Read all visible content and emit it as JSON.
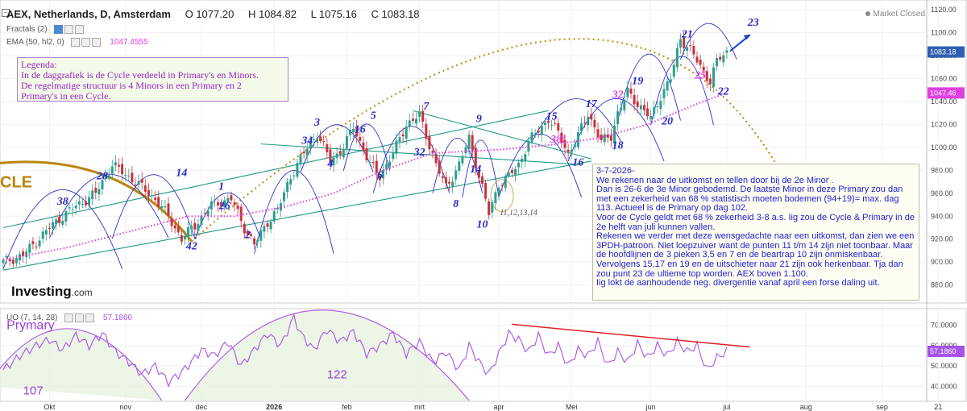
{
  "header": {
    "title": "AEX, Netherlands, D, Amsterdam",
    "open": "O 1077.20",
    "high": "H 1084.82",
    "low": "L 1075.16",
    "close": "C 1083.18",
    "market_status": "Market Closed"
  },
  "indicators": {
    "fractals": "Fractals (2)",
    "ema": "EMA (50, hl2, 0)",
    "ema_value": "1047.4555",
    "uo": "UO (7, 14, 28)",
    "uo_value": "57.1860"
  },
  "legend_note": {
    "lines": [
      "Legenda:",
      "In de daggrafiek is de Cycle verdeeld in Primary's en Minors.",
      "De regelmatige structuur is 4 Minors in een Primary en 2",
      "Primary's in een Cycle."
    ]
  },
  "analysis_note": "3-7-2026-\nWe rekenen naar de uitkomst en tellen door bij de 2e Minor .\nDan is 26-6 de 3e Minor gebodemd. De laatste Minor in deze Primary zou dan met een zekerheid van 68 %  statistisch moeten bodemen (94+19)= max. dag 113. Actueel is de Primary op dag 102.\nVoor de Cycle geldt met 68 % zekerheid  3-8 a.s. Iig zou de Cycle & Primary in de 2e helft van juli kunnen vallen.\nRekenen we verder met deze wensgedachte naar een uitkomst, dan zien we een 3PDH-patroon. Niet loepzuiver want de punten 11 t/m 14 zijn niet toonbaar. Maar de hoofdlijnen de 3 pieken 3,5 en 7 en de beartrap 10 zijn onmiskenbaar. Vervolgens 15,17 en 19 en de uitschieter naar 21 zijn ook herkenbaar.  Tja dan zou punt 23 de ultieme top worden. AEX boven 1.100.\nIig lokt de aanhoudende neg. divergentie vanaf april een forse daling uit.",
  "logo": {
    "brand": "Investing",
    "domain": ".com"
  },
  "cycle_text": "CLE",
  "colors": {
    "up": "#2d9e8e",
    "down": "#c8333b",
    "ema": "#e040e0",
    "channel": "#1e9a86",
    "minor_arc": "#2a2acc",
    "cycle_arc": "#b8860b",
    "dotted_arc": "#c7901a",
    "uo": "#a654e8",
    "divergence": "#e02020",
    "last_price_bg": "#2f5fb3"
  },
  "chart_data": {
    "type": "candlestick",
    "main": {
      "yaxis_ticks": [
        880,
        900,
        920,
        940,
        960,
        980,
        1000,
        1020,
        1040,
        1060,
        1080,
        1100,
        1120
      ],
      "ylim": [
        865,
        1125
      ],
      "last_price_label": "1083.18",
      "ema_label": "1047.46",
      "x_date_labels": [
        "Okt",
        "nov",
        "dec",
        "2026",
        "feb",
        "mrt",
        "apr",
        "Mei",
        "jun",
        "jul",
        "aug",
        "sep",
        "21"
      ],
      "x_date_index": [
        14,
        37,
        60,
        82,
        104,
        126,
        150,
        172,
        196,
        219,
        243,
        266,
        283
      ],
      "close_anchors": [
        [
          0,
          900
        ],
        [
          6,
          906
        ],
        [
          14,
          930
        ],
        [
          20,
          945
        ],
        [
          28,
          960
        ],
        [
          33,
          985
        ],
        [
          40,
          970
        ],
        [
          46,
          955
        ],
        [
          50,
          940
        ],
        [
          54,
          920
        ],
        [
          58,
          932
        ],
        [
          63,
          950
        ],
        [
          69,
          955
        ],
        [
          73,
          930
        ],
        [
          76,
          915
        ],
        [
          80,
          935
        ],
        [
          83,
          945
        ],
        [
          87,
          975
        ],
        [
          92,
          1000
        ],
        [
          95,
          1012
        ],
        [
          99,
          988
        ],
        [
          103,
          1000
        ],
        [
          106,
          1018
        ],
        [
          111,
          985
        ],
        [
          114,
          975
        ],
        [
          118,
          995
        ],
        [
          122,
          1020
        ],
        [
          126,
          1028
        ],
        [
          131,
          985
        ],
        [
          134,
          965
        ],
        [
          138,
          985
        ],
        [
          141,
          1008
        ],
        [
          145,
          965
        ],
        [
          147,
          942
        ],
        [
          150,
          968
        ],
        [
          153,
          975
        ],
        [
          156,
          985
        ],
        [
          159,
          1005
        ],
        [
          162,
          1015
        ],
        [
          165,
          1025
        ],
        [
          168,
          1012
        ],
        [
          171,
          995
        ],
        [
          174,
          1010
        ],
        [
          177,
          1030
        ],
        [
          181,
          1005
        ],
        [
          184,
          1010
        ],
        [
          186,
          1030
        ],
        [
          189,
          1048
        ],
        [
          193,
          1035
        ],
        [
          196,
          1025
        ],
        [
          199,
          1045
        ],
        [
          202,
          1060
        ],
        [
          205,
          1095
        ],
        [
          208,
          1085
        ],
        [
          211,
          1070
        ],
        [
          214,
          1058
        ],
        [
          216,
          1075
        ],
        [
          219,
          1083
        ]
      ],
      "ema_anchors": [
        [
          0,
          902
        ],
        [
          20,
          913
        ],
        [
          40,
          928
        ],
        [
          56,
          940
        ],
        [
          70,
          940
        ],
        [
          85,
          948
        ],
        [
          100,
          960
        ],
        [
          115,
          980
        ],
        [
          130,
          995
        ],
        [
          150,
          998
        ],
        [
          165,
          1002
        ],
        [
          180,
          1008
        ],
        [
          195,
          1020
        ],
        [
          210,
          1038
        ],
        [
          219,
          1047.46
        ]
      ],
      "wave_labels": [
        {
          "text": "38",
          "i": 18,
          "y": 950,
          "c": "#2a2acc"
        },
        {
          "text": "28",
          "i": 30,
          "y": 972,
          "c": "#2a2acc"
        },
        {
          "text": "14",
          "i": 54,
          "y": 975,
          "c": "#2a2acc"
        },
        {
          "text": "42",
          "i": 57,
          "y": 911,
          "c": "#2a2acc"
        },
        {
          "text": "1",
          "i": 66,
          "y": 963,
          "c": "#2a2acc"
        },
        {
          "text": "26",
          "i": 67,
          "y": 946,
          "c": "#2a2acc"
        },
        {
          "text": "2",
          "i": 74,
          "y": 921,
          "c": "#2a2acc"
        },
        {
          "text": "3",
          "i": 95,
          "y": 1019,
          "c": "#2a2acc"
        },
        {
          "text": "34",
          "i": 92,
          "y": 1003,
          "c": "#2a2acc"
        },
        {
          "text": "4",
          "i": 99,
          "y": 983,
          "c": "#2a2acc"
        },
        {
          "text": "16",
          "i": 108,
          "y": 1013,
          "c": "#2a2acc"
        },
        {
          "text": "5",
          "i": 112,
          "y": 1025,
          "c": "#2a2acc"
        },
        {
          "text": "6",
          "i": 114,
          "y": 973,
          "c": "#2a2acc"
        },
        {
          "text": "32",
          "i": 126,
          "y": 993,
          "c": "#2a2acc"
        },
        {
          "text": "7",
          "i": 128,
          "y": 1033,
          "c": "#2a2acc"
        },
        {
          "text": "8",
          "i": 137,
          "y": 948,
          "c": "#2a2acc"
        },
        {
          "text": "9",
          "i": 144,
          "y": 1022,
          "c": "#2a2acc"
        },
        {
          "text": "14",
          "i": 143,
          "y": 978,
          "c": "#2a2acc"
        },
        {
          "text": "10",
          "i": 145,
          "y": 930,
          "c": "#2a2acc"
        },
        {
          "text": "11,12,13,14",
          "i": 156,
          "y": 941,
          "c": "#555555"
        },
        {
          "text": "15",
          "i": 166,
          "y": 1024,
          "c": "#2a2acc"
        },
        {
          "text": "38!",
          "i": 168,
          "y": 1004,
          "c": "#e040e0"
        },
        {
          "text": "16",
          "i": 174,
          "y": 984,
          "c": "#2a2acc"
        },
        {
          "text": "17",
          "i": 178,
          "y": 1035,
          "c": "#2a2acc"
        },
        {
          "text": "18",
          "i": 186,
          "y": 999,
          "c": "#2a2acc"
        },
        {
          "text": "32",
          "i": 186,
          "y": 1043,
          "c": "#e040e0"
        },
        {
          "text": "19",
          "i": 192,
          "y": 1055,
          "c": "#2a2acc"
        },
        {
          "text": "20",
          "i": 201,
          "y": 1020,
          "c": "#2a2acc"
        },
        {
          "text": "21",
          "i": 207,
          "y": 1096,
          "c": "#2a2acc"
        },
        {
          "text": "25",
          "i": 211,
          "y": 1060,
          "c": "#e040e0"
        },
        {
          "text": "22",
          "i": 218,
          "y": 1046,
          "c": "#2a2acc"
        },
        {
          "text": "23",
          "i": 227,
          "y": 1106,
          "c": "#2a2acc"
        }
      ]
    },
    "uo": {
      "yaxis_ticks": [
        40,
        50,
        60,
        70
      ],
      "ylim": [
        33,
        77
      ],
      "last_label": "57.1860",
      "anchors": [
        [
          0,
          48
        ],
        [
          5,
          55
        ],
        [
          10,
          60
        ],
        [
          14,
          63
        ],
        [
          18,
          58
        ],
        [
          22,
          65
        ],
        [
          26,
          60
        ],
        [
          30,
          66
        ],
        [
          34,
          57
        ],
        [
          38,
          52
        ],
        [
          42,
          46
        ],
        [
          46,
          50
        ],
        [
          50,
          42
        ],
        [
          54,
          47
        ],
        [
          57,
          52
        ],
        [
          60,
          58
        ],
        [
          64,
          55
        ],
        [
          68,
          62
        ],
        [
          72,
          50
        ],
        [
          76,
          58
        ],
        [
          80,
          66
        ],
        [
          84,
          60
        ],
        [
          88,
          74
        ],
        [
          90,
          66
        ],
        [
          94,
          58
        ],
        [
          98,
          68
        ],
        [
          102,
          62
        ],
        [
          106,
          67
        ],
        [
          110,
          56
        ],
        [
          114,
          60
        ],
        [
          118,
          66
        ],
        [
          122,
          56
        ],
        [
          126,
          62
        ],
        [
          130,
          52
        ],
        [
          134,
          57
        ],
        [
          138,
          48
        ],
        [
          141,
          60
        ],
        [
          144,
          52
        ],
        [
          147,
          46
        ],
        [
          150,
          56
        ],
        [
          153,
          66
        ],
        [
          156,
          63
        ],
        [
          159,
          57
        ],
        [
          162,
          65
        ],
        [
          165,
          55
        ],
        [
          168,
          60
        ],
        [
          171,
          50
        ],
        [
          174,
          58
        ],
        [
          177,
          55
        ],
        [
          180,
          62
        ],
        [
          183,
          50
        ],
        [
          186,
          57
        ],
        [
          189,
          52
        ],
        [
          192,
          61
        ],
        [
          195,
          54
        ],
        [
          198,
          60
        ],
        [
          201,
          55
        ],
        [
          204,
          62
        ],
        [
          207,
          57
        ],
        [
          210,
          60
        ],
        [
          213,
          48
        ],
        [
          216,
          54
        ],
        [
          219,
          57.19
        ]
      ],
      "divergence_line": [
        [
          154,
          70.5
        ],
        [
          226,
          59.3
        ]
      ],
      "labels": [
        {
          "text": "Prymary",
          "i": 1,
          "y": 68,
          "c": "#9b40d6"
        },
        {
          "text": "107",
          "i": 6,
          "y": 36,
          "c": "#9b40d6"
        },
        {
          "text": "122",
          "i": 98,
          "y": 44,
          "c": "#9b40d6"
        }
      ]
    }
  }
}
